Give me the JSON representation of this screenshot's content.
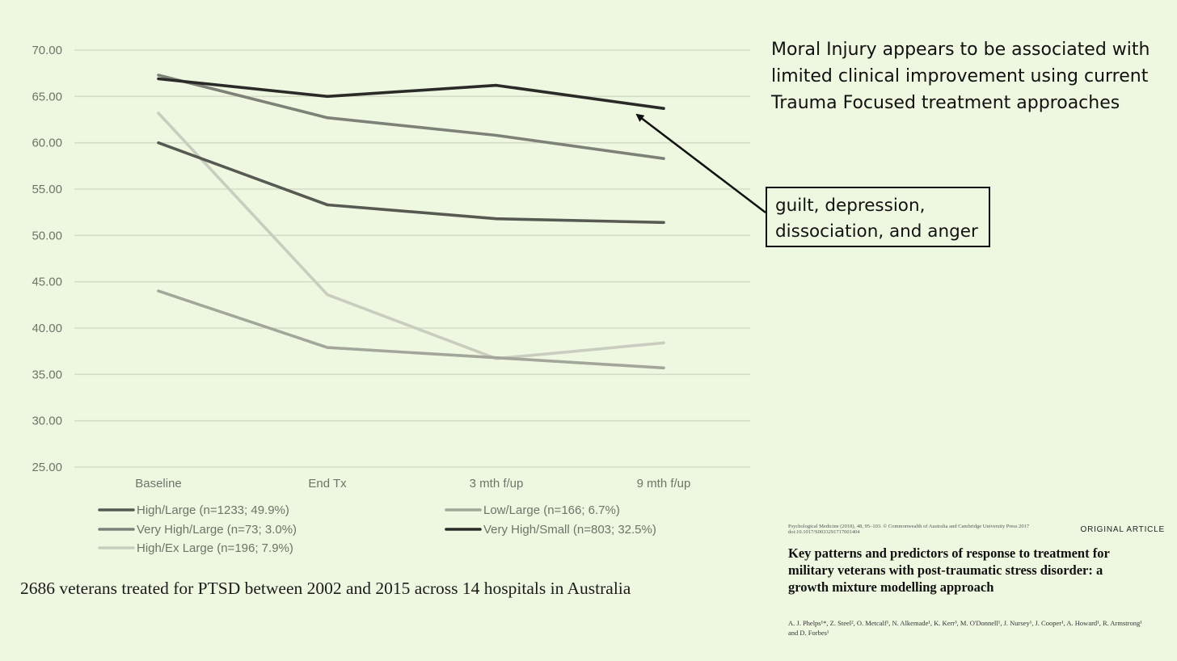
{
  "chart_data": {
    "type": "line",
    "categories": [
      "Baseline",
      "End Tx",
      "3 mth f/up",
      "9 mth f/up"
    ],
    "ylim": [
      25,
      70
    ],
    "yticks": [
      "70.00",
      "65.00",
      "60.00",
      "55.00",
      "50.00",
      "45.00",
      "40.00",
      "35.00",
      "30.00",
      "25.00"
    ],
    "ytick_values": [
      70,
      65,
      60,
      55,
      50,
      45,
      40,
      35,
      30,
      25
    ],
    "grid": true,
    "legend_position": "bottom",
    "series": [
      {
        "name": "High/Large (n=1233; 49.9%)",
        "color": "#565a52",
        "values": [
          60.0,
          53.3,
          51.8,
          51.4
        ]
      },
      {
        "name": "Very High/Large (n=73; 3.0%)",
        "color": "#7d8178",
        "values": [
          67.3,
          62.7,
          60.8,
          58.3
        ]
      },
      {
        "name": "High/Ex Large (n=196; 7.9%)",
        "color": "#c9cdbf",
        "values": [
          63.2,
          43.6,
          36.7,
          38.4
        ]
      },
      {
        "name": "Low/Large (n=166; 6.7%)",
        "color": "#a3a79b",
        "values": [
          44.0,
          37.9,
          36.8,
          35.7
        ]
      },
      {
        "name": "Very High/Small (n=803; 32.5%)",
        "color": "#2a2a28",
        "values": [
          66.9,
          65.0,
          66.2,
          63.7
        ]
      }
    ]
  },
  "caption": "2686 veterans treated for PTSD between 2002 and 2015 across 14 hospitals in Australia",
  "headline": "Moral Injury appears to be associated with limited clinical improvement using current Trauma Focused treatment approaches",
  "annotation": {
    "line1": "guilt, depression,",
    "line2": "dissociation, and anger"
  },
  "paper": {
    "journal": "Psychological Medicine (2018), 48, 95–103.   © Commonwealth of Australia and Cambridge University Press 2017",
    "doi": "doi:10.1017/S0033291717001404",
    "article_type": "ORIGINAL ARTICLE",
    "title": "Key patterns and predictors of response to treatment for military veterans with post-traumatic stress disorder: a growth mixture modelling approach",
    "authors": "A. J. Phelps¹*, Z. Steel², O. Metcalf¹, N. Alkemade¹, K. Kerr³, M. O'Donnell¹, J. Nursey¹, J. Cooper¹, A. Howard¹, R. Armstrong¹ and D. Forbes¹"
  },
  "colors": {
    "background": "#eef8e1",
    "gridline": "#d4dcc6",
    "axis_text": "#6f7368"
  }
}
